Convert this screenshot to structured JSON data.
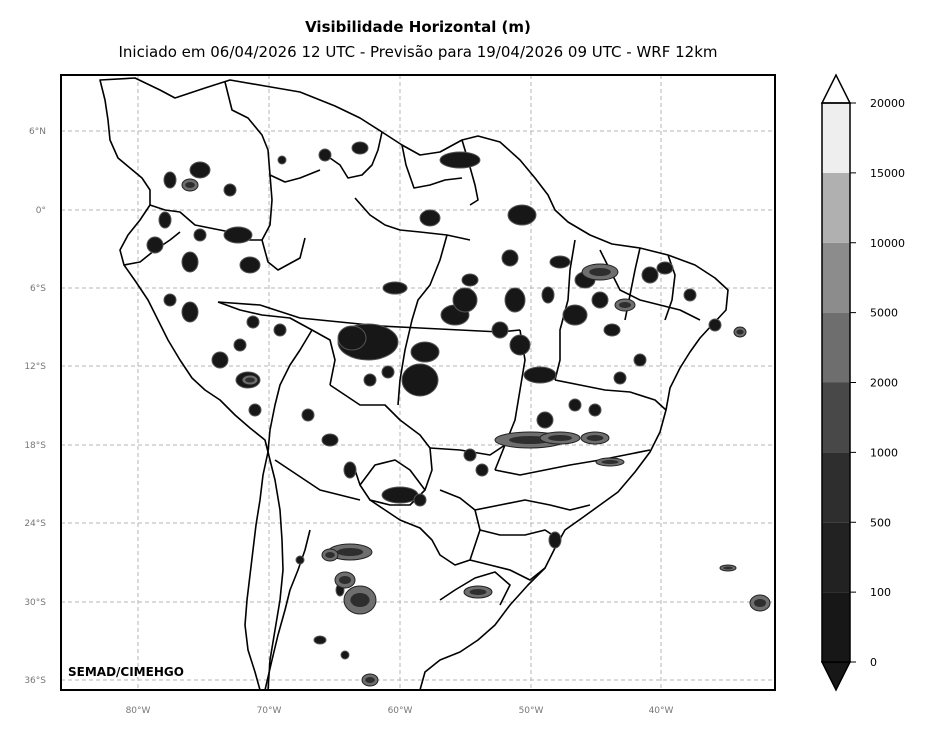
{
  "title": "Visibilidade Horizontal (m)",
  "subtitle": "Iniciado em 06/04/2026 12 UTC - Previsão para 19/04/2026 09 UTC - WRF 12km",
  "credit": "SEMAD/CIMEHGO",
  "lat_labels": [
    "6°N",
    "0°",
    "6°S",
    "12°S",
    "18°S",
    "24°S",
    "30°S",
    "36°S"
  ],
  "lon_labels": [
    "80°W",
    "70°W",
    "60°W",
    "50°W",
    "40°W"
  ],
  "colorbar": {
    "ticks": [
      "0",
      "100",
      "500",
      "1000",
      "2000",
      "5000",
      "10000",
      "15000",
      "20000"
    ],
    "colors": [
      "#171717",
      "#222222",
      "#2e2e2e",
      "#484848",
      "#6e6e6e",
      "#8c8c8c",
      "#b0b0b0",
      "#eeeeee"
    ],
    "extend": "both"
  },
  "grid": true
}
